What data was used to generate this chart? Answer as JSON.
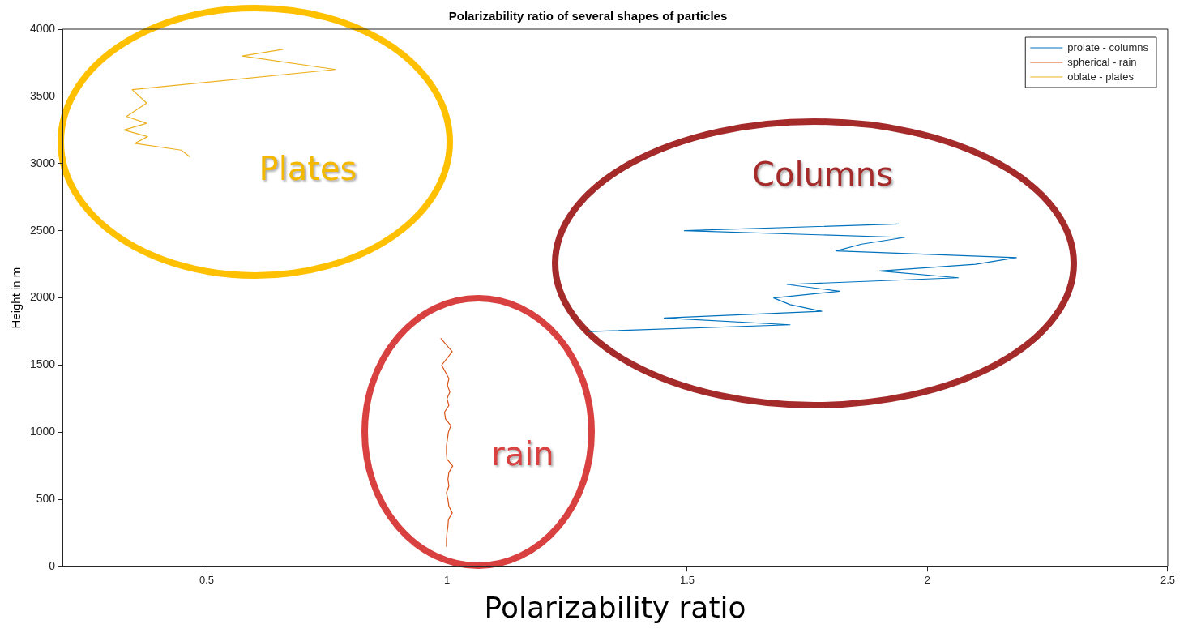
{
  "chart_data": {
    "type": "line",
    "title": "Polarizability ratio of several shapes of particles",
    "xlabel": "Polarizability ratio",
    "ylabel": "Height in m",
    "xlim": [
      0.2,
      2.5
    ],
    "xticks": [
      0.5,
      1,
      1.5,
      2,
      2.5
    ],
    "ylim": [
      0,
      4000
    ],
    "yticks": [
      0,
      500,
      1000,
      1500,
      2000,
      2500,
      3000,
      3500,
      4000
    ],
    "grid": false,
    "legend": "top right",
    "marker": "none",
    "line_style": "solid",
    "series": [
      {
        "name": "prolate - columns",
        "color": "#0072bd",
        "x": [
          1.94,
          1.494,
          1.952,
          1.863,
          1.81,
          2.185,
          2.1,
          1.9,
          2.064,
          1.708,
          1.817,
          1.68,
          1.714,
          1.78,
          1.452,
          1.714,
          1.294
        ],
        "values": [
          2550,
          2500,
          2450,
          2400,
          2350,
          2300,
          2250,
          2200,
          2150,
          2100,
          2050,
          2000,
          1950,
          1900,
          1850,
          1800,
          1750
        ]
      },
      {
        "name": "spherical - rain",
        "color": "#d95319",
        "x": [
          0.987,
          1.011,
          0.989,
          1.004,
          1.001,
          1.006,
          1.0,
          1.004,
          0.995,
          0.997,
          1.008,
          1.003,
          1.001,
          0.999,
          0.999,
          1.0,
          1.012,
          1.004,
          1.002,
          1.004,
          0.999,
          1.002,
          1.004,
          1.011,
          1.003,
          1.002,
          1.0,
          0.999,
          0.999
        ],
        "values": [
          1700,
          1600,
          1500,
          1400,
          1350,
          1300,
          1250,
          1200,
          1150,
          1100,
          1050,
          1000,
          950,
          900,
          850,
          800,
          750,
          700,
          650,
          600,
          550,
          500,
          450,
          400,
          350,
          300,
          250,
          200,
          150
        ]
      },
      {
        "name": "oblate - plates",
        "color": "#edb120",
        "x": [
          0.659,
          0.574,
          0.768,
          0.345,
          0.375,
          0.333,
          0.375,
          0.328,
          0.377,
          0.35,
          0.447,
          0.465
        ],
        "values": [
          3850,
          3800,
          3700,
          3550,
          3450,
          3350,
          3300,
          3250,
          3200,
          3150,
          3100,
          3050
        ]
      }
    ],
    "annotations": [
      "Plates",
      "Columns",
      "rain"
    ]
  }
}
